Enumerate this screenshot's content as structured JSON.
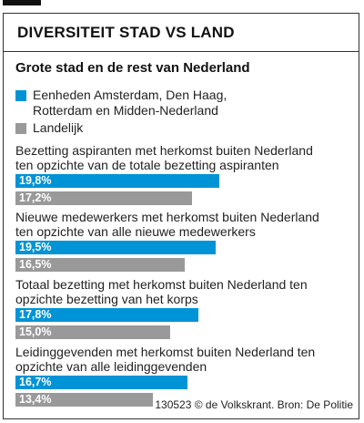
{
  "header": {
    "title": "DIVERSITEIT STAD VS LAND",
    "subtitle": "Grote stad en de rest van Nederland"
  },
  "colors": {
    "cities": "#0093d6",
    "national": "#999999"
  },
  "legend": [
    {
      "label": "Eenheden Amsterdam, Den Haag, Rotterdam en Midden-Nederland",
      "color": "#0093d6"
    },
    {
      "label": "Landelijk",
      "color": "#999999"
    }
  ],
  "chart_data": {
    "type": "bar",
    "orientation": "horizontal",
    "title": "Grote stad en de rest van Nederland",
    "unit": "%",
    "xlim": [
      0,
      25
    ],
    "grid": false,
    "legend_position": "top-left",
    "series": [
      {
        "name": "Eenheden Amsterdam, Den Haag, Rotterdam en Midden-Nederland",
        "values": [
          19.8,
          19.5,
          17.8,
          16.7
        ]
      },
      {
        "name": "Landelijk",
        "values": [
          17.2,
          16.5,
          15.0,
          13.4
        ]
      }
    ],
    "categories": [
      "Bezetting aspiranten met herkomst buiten Nederland ten opzichte van de totale bezetting aspiranten",
      "Nieuwe medewerkers met herkomst buiten Nederland ten opzichte van alle nieuwe medewerkers",
      "Totaal bezetting met herkomst buiten Nederland ten opzichte bezetting van het korps",
      "Leidinggevenden met herkomst buiten Nederland ten opzichte van alle leidinggevenden"
    ],
    "value_labels": [
      [
        "19,8%",
        "17,2%"
      ],
      [
        "19,5%",
        "16,5%"
      ],
      [
        "17,8%",
        "15,0%"
      ],
      [
        "16,7%",
        "13,4%"
      ]
    ]
  },
  "footer": {
    "source": "130523 © de Volkskrant. Bron: De Politie"
  }
}
